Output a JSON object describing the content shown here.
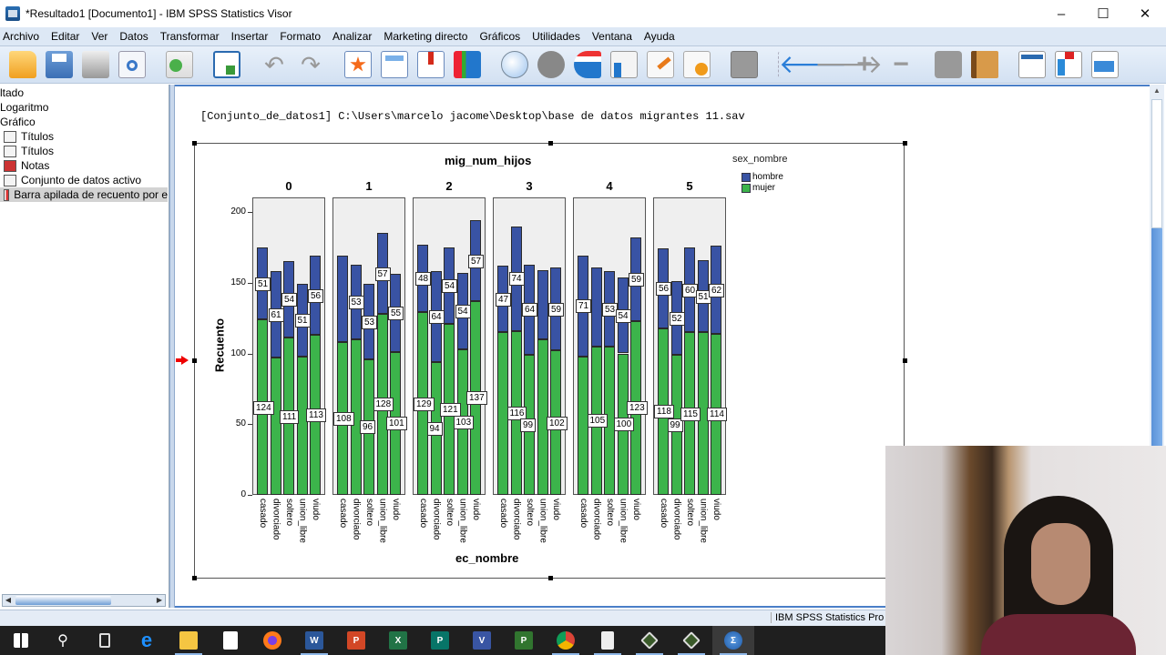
{
  "window": {
    "title": "*Resultado1 [Documento1] - IBM SPSS Statistics Visor",
    "controls": {
      "minimize": "–",
      "maximize": "☐",
      "close": "✕"
    }
  },
  "menubar": {
    "items": [
      "Archivo",
      "Editar",
      "Ver",
      "Datos",
      "Transformar",
      "Insertar",
      "Formato",
      "Analizar",
      "Marketing directo",
      "Gráficos",
      "Utilidades",
      "Ventana",
      "Ayuda"
    ]
  },
  "toolbar": {
    "icons": [
      "open-folder-icon",
      "save-icon",
      "print-icon",
      "print-preview-icon",
      "export-icon",
      "recall-dialog-icon",
      "undo-icon",
      "redo-icon",
      "goto-data-icon",
      "goto-case-icon",
      "goto-variable-icon",
      "variables-icon",
      "use-sets-icon",
      "show-all-variables-icon",
      "spell-check-icon",
      "create-edit-autoscript-icon",
      "edit-icon",
      "run-script-icon",
      "designate-window-icon",
      "promote-icon",
      "demote-icon",
      "expand-icon",
      "collapse-icon",
      "show-icon",
      "hide-icon",
      "insert-heading-icon",
      "insert-title-icon",
      "insert-text-icon"
    ]
  },
  "outline": {
    "items": [
      {
        "label": "ltado",
        "icon": "none",
        "indent": 0
      },
      {
        "label": "Logaritmo",
        "icon": "none",
        "indent": 0
      },
      {
        "label": "Gráfico",
        "icon": "none",
        "indent": 0
      },
      {
        "label": "Títulos",
        "icon": "title-icon",
        "indent": 1
      },
      {
        "label": "Títulos",
        "icon": "title-icon",
        "indent": 1
      },
      {
        "label": "Notas",
        "icon": "notes-icon",
        "indent": 1
      },
      {
        "label": "Conjunto de datos activo",
        "icon": "dataset-icon",
        "indent": 1
      },
      {
        "label": "Barra apilada de recuento por e",
        "icon": "bar-chart-icon",
        "indent": 1,
        "selected": true
      }
    ]
  },
  "content": {
    "dataset_path": "[Conjunto_de_datos1] C:\\Users\\marcelo jacome\\Desktop\\base de datos migrantes 11.sav"
  },
  "statusbar": {
    "text": "IBM SPSS Statistics Pro"
  },
  "taskbar": {
    "items": [
      "start",
      "search",
      "task-view",
      "edge",
      "file-explorer",
      "store",
      "firefox",
      "word",
      "powerpoint",
      "excel",
      "publisher",
      "visio",
      "project",
      "chrome",
      "calculator",
      "app-green",
      "app-green-red",
      "spss"
    ]
  },
  "colors": {
    "hombre": "#3953a4",
    "mujer": "#3cb44b",
    "panel_bg": "#efefef",
    "menubar_bg": "#dde8f5"
  },
  "chart_data": {
    "type": "bar",
    "stacked": true,
    "title": "mig_num_hijos",
    "xlabel": "ec_nombre",
    "ylabel": "Recuento",
    "ylim": [
      0,
      210
    ],
    "yticks": [
      0,
      50,
      100,
      150,
      200
    ],
    "legend": {
      "title": "sex_nombre",
      "entries": [
        "hombre",
        "mujer"
      ],
      "position": "top-right"
    },
    "panels": [
      "0",
      "1",
      "2",
      "3",
      "4",
      "5"
    ],
    "categories": [
      "casado",
      "divorciado",
      "soltero",
      "union_libre",
      "viudo"
    ],
    "series": [
      {
        "name": "mujer",
        "panel_values": {
          "0": [
            124,
            97,
            111,
            98,
            113
          ],
          "1": [
            108,
            110,
            96,
            128,
            101
          ],
          "2": [
            129,
            94,
            121,
            103,
            137
          ],
          "3": [
            115,
            116,
            99,
            110,
            102
          ],
          "4": [
            98,
            105,
            105,
            100,
            123
          ],
          "5": [
            118,
            99,
            115,
            115,
            114
          ]
        }
      },
      {
        "name": "hombre",
        "panel_values": {
          "0": [
            51,
            61,
            54,
            51,
            56
          ],
          "1": [
            61,
            53,
            53,
            57,
            55
          ],
          "2": [
            48,
            64,
            54,
            54,
            57
          ],
          "3": [
            47,
            74,
            64,
            49,
            59
          ],
          "4": [
            71,
            56,
            53,
            54,
            59
          ],
          "5": [
            56,
            52,
            60,
            51,
            62
          ]
        }
      }
    ],
    "labels_shown": {
      "mujer": {
        "0": [
          124,
          null,
          111,
          null,
          113
        ],
        "1": [
          108,
          null,
          96,
          128,
          101
        ],
        "2": [
          129,
          94,
          121,
          103,
          137
        ],
        "3": [
          null,
          116,
          99,
          null,
          102
        ],
        "4": [
          null,
          105,
          null,
          100,
          123
        ],
        "5": [
          118,
          99,
          115,
          null,
          114
        ]
      },
      "hombre": {
        "0": [
          51,
          61,
          54,
          51,
          56
        ],
        "1": [
          null,
          53,
          53,
          57,
          55
        ],
        "2": [
          48,
          64,
          54,
          54,
          57
        ],
        "3": [
          47,
          74,
          64,
          null,
          59
        ],
        "4": [
          71,
          null,
          53,
          54,
          59
        ],
        "5": [
          56,
          52,
          60,
          51,
          62
        ]
      }
    }
  }
}
